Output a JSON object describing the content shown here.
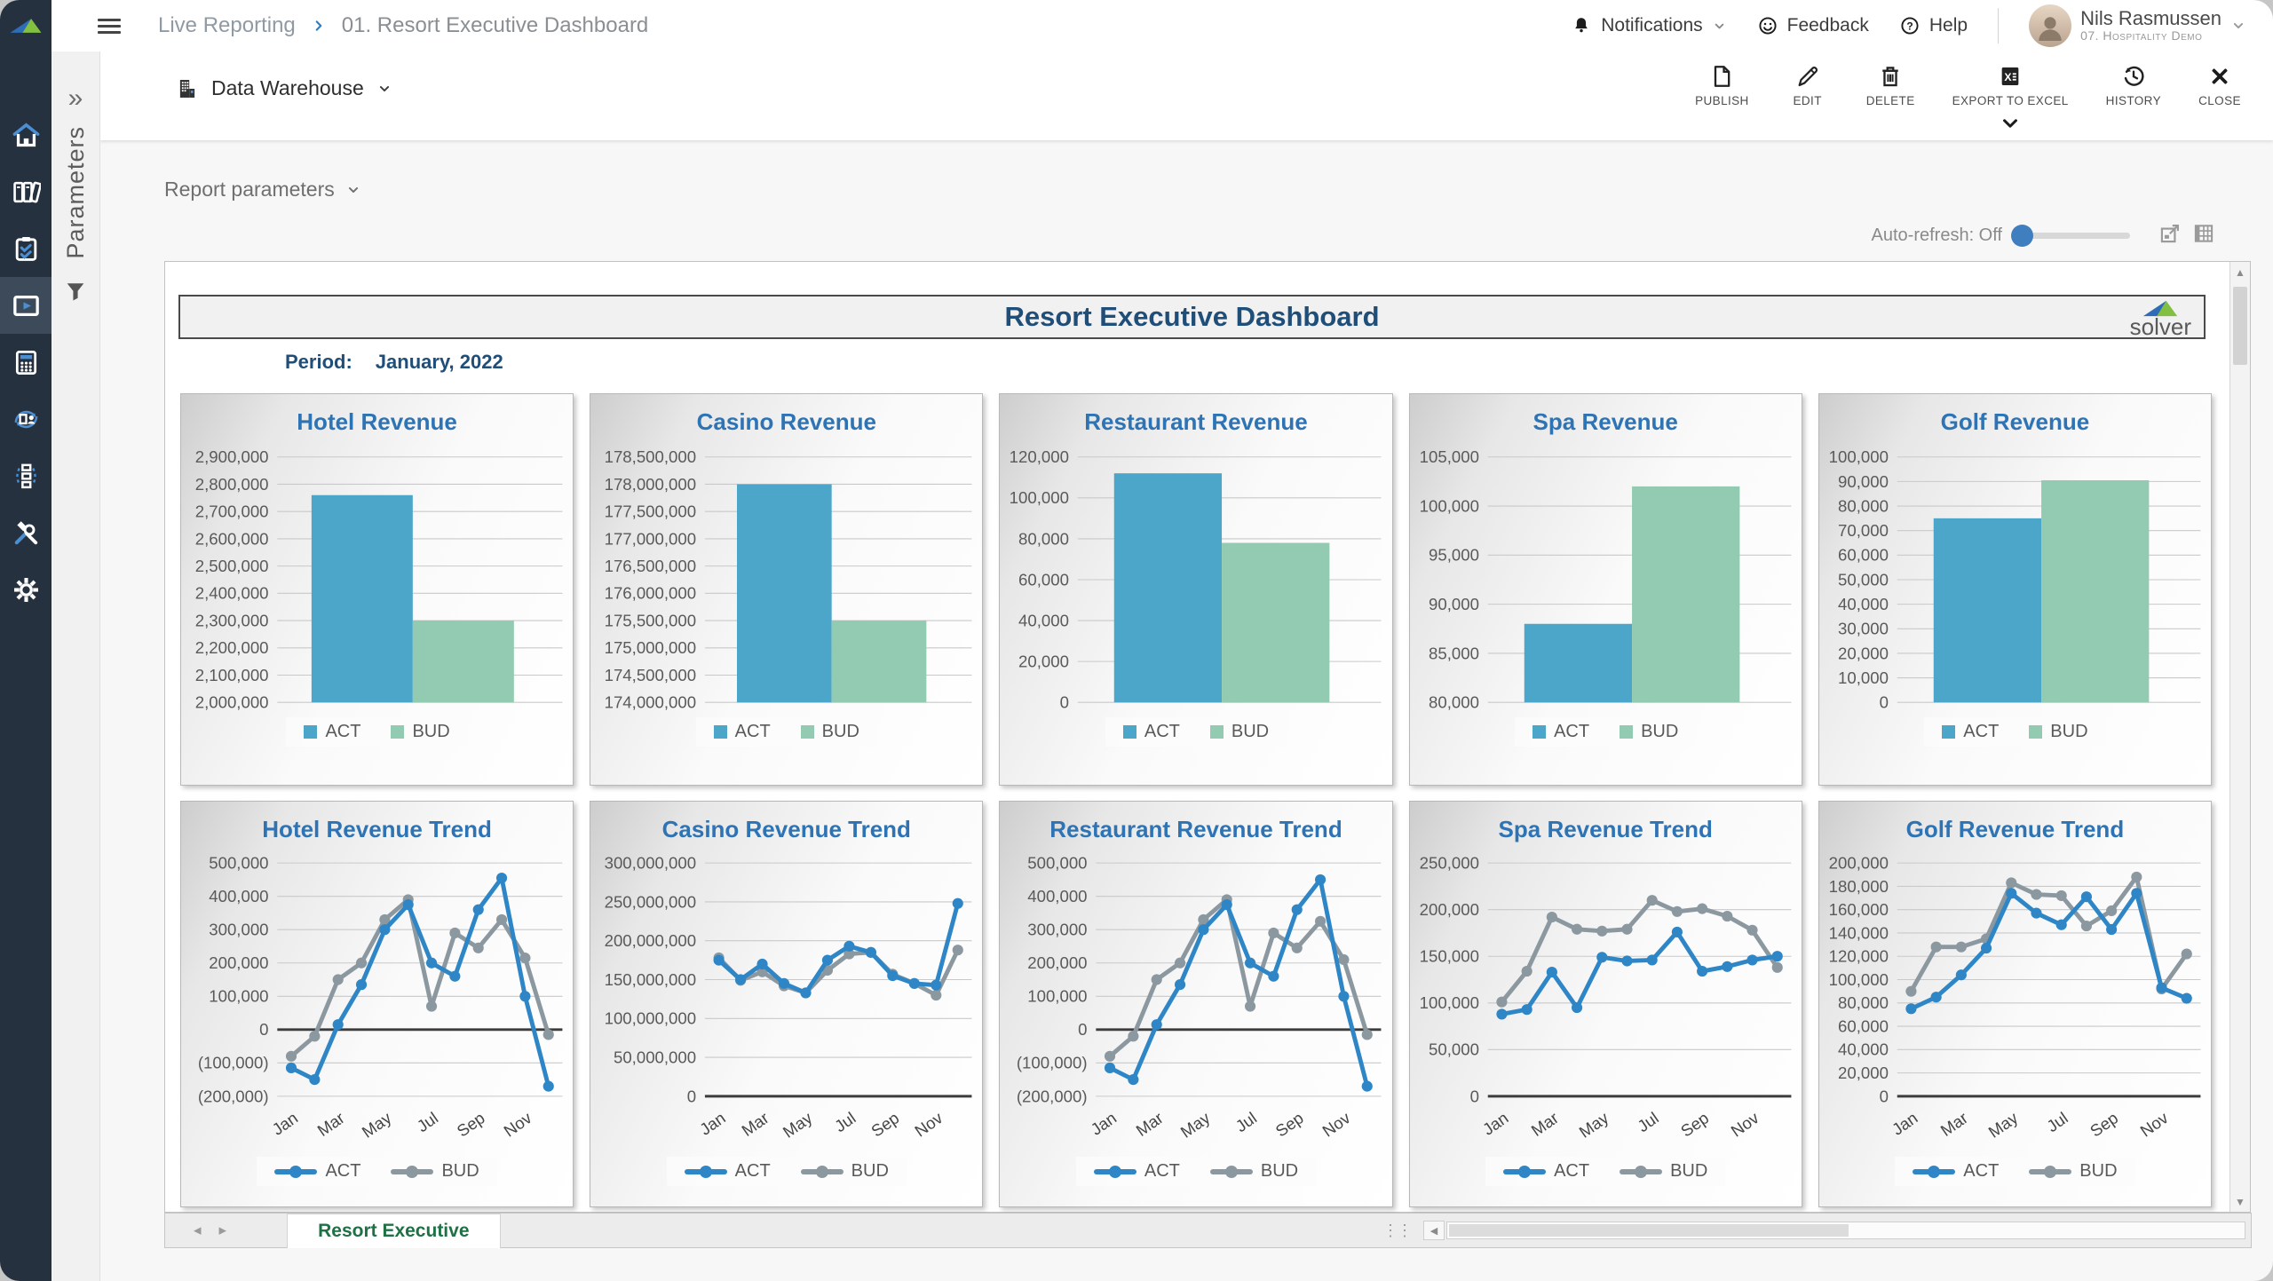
{
  "breadcrumb": {
    "section": "Live Reporting",
    "page": "01. Resort Executive Dashboard"
  },
  "header": {
    "notifications_label": "Notifications",
    "feedback_label": "Feedback",
    "help_label": "Help",
    "user_name": "Nils Rasmussen",
    "user_org": "07. Hospitality Demo",
    "icons": [
      "bell-icon",
      "smiley-icon",
      "help-circle-icon",
      "chevron-down-icon"
    ]
  },
  "toolbar": {
    "source_label": "Data Warehouse",
    "publish_label": "PUBLISH",
    "edit_label": "EDIT",
    "delete_label": "DELETE",
    "export_label": "EXPORT TO EXCEL",
    "history_label": "HISTORY",
    "close_label": "CLOSE",
    "icons": [
      "building-icon",
      "page-icon",
      "pencil-icon",
      "trash-icon",
      "excel-icon",
      "history-icon",
      "close-icon"
    ]
  },
  "params_panel": {
    "rail_label": "Parameters",
    "expand_glyph": "»",
    "report_parameters_label": "Report parameters",
    "auto_refresh_label": "Auto-refresh: Off"
  },
  "sidebar": {
    "items": [
      {
        "icon": "home",
        "active": false
      },
      {
        "icon": "binders",
        "active": false
      },
      {
        "icon": "clipboard",
        "active": false
      },
      {
        "icon": "live-report",
        "active": true
      },
      {
        "icon": "calculator",
        "active": false
      },
      {
        "icon": "doc-sync",
        "active": false
      },
      {
        "icon": "org-flow",
        "active": false
      },
      {
        "icon": "tools",
        "active": false
      },
      {
        "icon": "gear",
        "active": false
      }
    ]
  },
  "report": {
    "title": "Resort Executive Dashboard",
    "period_label": "Period:",
    "period_value": "January, 2022",
    "logo_text": "solver",
    "tab_label": "Resort Executive"
  },
  "colors": {
    "act_bar": "#4BA6C9",
    "bud_bar": "#92CBB1",
    "act_line": "#2E86C6",
    "bud_line": "#8C98A0",
    "chart_title": "#2E74B5",
    "report_title": "#1F4E79",
    "sidebar_bg": "#26313F",
    "accent_blue": "#3F7FC0",
    "tab_green": "#1E7145"
  },
  "chart_data": [
    {
      "type": "bar",
      "title": "Hotel Revenue",
      "categories": [
        "ACT",
        "BUD"
      ],
      "series": [
        {
          "name": "ACT",
          "color": "#4BA6C9",
          "values": [
            2760000
          ]
        },
        {
          "name": "BUD",
          "color": "#92CBB1",
          "values": [
            2300000
          ]
        }
      ],
      "ylim": [
        2000000,
        2900000
      ],
      "ytick_step": 100000,
      "grid": true,
      "legend_position": "bottom"
    },
    {
      "type": "bar",
      "title": "Casino Revenue",
      "categories": [
        "ACT",
        "BUD"
      ],
      "series": [
        {
          "name": "ACT",
          "color": "#4BA6C9",
          "values": [
            178000000
          ]
        },
        {
          "name": "BUD",
          "color": "#92CBB1",
          "values": [
            175500000
          ]
        }
      ],
      "ylim": [
        174000000,
        178500000
      ],
      "ytick_step": 500000,
      "grid": true,
      "legend_position": "bottom"
    },
    {
      "type": "bar",
      "title": "Restaurant Revenue",
      "categories": [
        "ACT",
        "BUD"
      ],
      "series": [
        {
          "name": "ACT",
          "color": "#4BA6C9",
          "values": [
            112000
          ]
        },
        {
          "name": "BUD",
          "color": "#92CBB1",
          "values": [
            78000
          ]
        }
      ],
      "ylim": [
        0,
        120000
      ],
      "ytick_step": 20000,
      "grid": true,
      "legend_position": "bottom"
    },
    {
      "type": "bar",
      "title": "Spa Revenue",
      "categories": [
        "ACT",
        "BUD"
      ],
      "series": [
        {
          "name": "ACT",
          "color": "#4BA6C9",
          "values": [
            88000
          ]
        },
        {
          "name": "BUD",
          "color": "#92CBB1",
          "values": [
            102000
          ]
        }
      ],
      "ylim": [
        80000,
        105000
      ],
      "ytick_step": 5000,
      "grid": true,
      "legend_position": "bottom"
    },
    {
      "type": "bar",
      "title": "Golf Revenue",
      "categories": [
        "ACT",
        "BUD"
      ],
      "series": [
        {
          "name": "ACT",
          "color": "#4BA6C9",
          "values": [
            75000
          ]
        },
        {
          "name": "BUD",
          "color": "#92CBB1",
          "values": [
            90500
          ]
        }
      ],
      "ylim": [
        0,
        100000
      ],
      "ytick_step": 10000,
      "grid": true,
      "legend_position": "bottom"
    },
    {
      "type": "line",
      "title": "Hotel Revenue Trend",
      "x": [
        "Jan",
        "Feb",
        "Mar",
        "Apr",
        "May",
        "Jun",
        "Jul",
        "Aug",
        "Sep",
        "Oct",
        "Nov",
        "Dec"
      ],
      "xtick_labels": [
        "Jan",
        "Mar",
        "May",
        "Jul",
        "Sep",
        "Nov"
      ],
      "series": [
        {
          "name": "ACT",
          "color": "#2E86C6",
          "values": [
            -115000,
            -150000,
            15000,
            135000,
            300000,
            375000,
            200000,
            160000,
            360000,
            455000,
            100000,
            -170000
          ]
        },
        {
          "name": "BUD",
          "color": "#8C98A0",
          "values": [
            -80000,
            -20000,
            150000,
            200000,
            330000,
            390000,
            70000,
            290000,
            245000,
            330000,
            215000,
            -15000
          ]
        }
      ],
      "ylim": [
        -200000,
        500000
      ],
      "ytick_step": 100000,
      "grid": true,
      "legend_position": "bottom"
    },
    {
      "type": "line",
      "title": "Casino Revenue Trend",
      "x": [
        "Jan",
        "Feb",
        "Mar",
        "Apr",
        "May",
        "Jun",
        "Jul",
        "Aug",
        "Sep",
        "Oct",
        "Nov",
        "Dec"
      ],
      "xtick_labels": [
        "Jan",
        "Mar",
        "May",
        "Jul",
        "Sep",
        "Nov"
      ],
      "series": [
        {
          "name": "ACT",
          "color": "#2E86C6",
          "values": [
            175000000,
            150000000,
            170000000,
            145000000,
            133000000,
            175000000,
            193000000,
            185000000,
            155000000,
            145000000,
            143000000,
            248000000
          ]
        },
        {
          "name": "BUD",
          "color": "#8C98A0",
          "values": [
            178000000,
            149000000,
            160000000,
            142000000,
            133000000,
            162000000,
            183000000,
            185000000,
            157000000,
            145000000,
            130000000,
            188000000
          ]
        }
      ],
      "ylim": [
        0,
        300000000
      ],
      "ytick_step": 50000000,
      "grid": true,
      "legend_position": "bottom"
    },
    {
      "type": "line",
      "title": "Restaurant Revenue Trend",
      "x": [
        "Jan",
        "Feb",
        "Mar",
        "Apr",
        "May",
        "Jun",
        "Jul",
        "Aug",
        "Sep",
        "Oct",
        "Nov",
        "Dec"
      ],
      "xtick_labels": [
        "Jan",
        "Mar",
        "May",
        "Jul",
        "Sep",
        "Nov"
      ],
      "series": [
        {
          "name": "ACT",
          "color": "#2E86C6",
          "values": [
            -115000,
            -150000,
            15000,
            135000,
            300000,
            375000,
            200000,
            160000,
            360000,
            450000,
            100000,
            -170000
          ]
        },
        {
          "name": "BUD",
          "color": "#8C98A0",
          "values": [
            -80000,
            -20000,
            150000,
            200000,
            330000,
            390000,
            70000,
            290000,
            245000,
            325000,
            210000,
            -15000
          ]
        }
      ],
      "ylim": [
        -200000,
        500000
      ],
      "ytick_step": 100000,
      "grid": true,
      "legend_position": "bottom"
    },
    {
      "type": "line",
      "title": "Spa Revenue Trend",
      "x": [
        "Jan",
        "Feb",
        "Mar",
        "Apr",
        "May",
        "Jun",
        "Jul",
        "Aug",
        "Sep",
        "Oct",
        "Nov",
        "Dec"
      ],
      "xtick_labels": [
        "Jan",
        "Mar",
        "May",
        "Jul",
        "Sep",
        "Nov"
      ],
      "series": [
        {
          "name": "ACT",
          "color": "#2E86C6",
          "values": [
            88000,
            93000,
            133000,
            95000,
            149000,
            145000,
            146000,
            176000,
            134000,
            139000,
            146000,
            150000
          ]
        },
        {
          "name": "BUD",
          "color": "#8C98A0",
          "values": [
            101000,
            134000,
            192000,
            179000,
            177000,
            179000,
            210000,
            198000,
            201000,
            193000,
            178000,
            138000
          ]
        }
      ],
      "ylim": [
        0,
        250000
      ],
      "ytick_step": 50000,
      "grid": true,
      "legend_position": "bottom"
    },
    {
      "type": "line",
      "title": "Golf Revenue Trend",
      "x": [
        "Jan",
        "Feb",
        "Mar",
        "Apr",
        "May",
        "Jun",
        "Jul",
        "Aug",
        "Sep",
        "Oct",
        "Nov",
        "Dec"
      ],
      "xtick_labels": [
        "Jan",
        "Mar",
        "May",
        "Jul",
        "Sep",
        "Nov"
      ],
      "series": [
        {
          "name": "ACT",
          "color": "#2E86C6",
          "values": [
            75000,
            85000,
            104000,
            127000,
            174000,
            157000,
            147000,
            171000,
            143000,
            174000,
            93000,
            84000
          ]
        },
        {
          "name": "BUD",
          "color": "#8C98A0",
          "values": [
            90000,
            128000,
            128000,
            135000,
            183000,
            173000,
            172000,
            146000,
            159000,
            188000,
            92000,
            122000
          ]
        }
      ],
      "ylim": [
        0,
        200000
      ],
      "ytick_step": 20000,
      "grid": true,
      "legend_position": "bottom"
    }
  ]
}
